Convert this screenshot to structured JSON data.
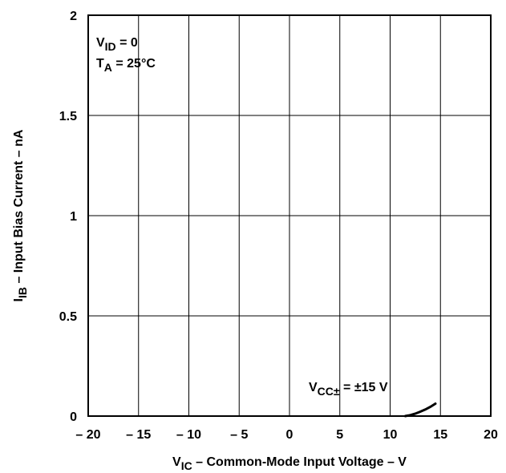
{
  "chart_data": {
    "type": "line",
    "title": "",
    "x_axis": {
      "label_main": "V",
      "label_sub": "IC",
      "label_rest": " – Common-Mode Input Voltage – V",
      "range": [
        -20,
        20
      ],
      "ticks": [
        -20,
        -15,
        -10,
        -5,
        0,
        5,
        10,
        15,
        20
      ],
      "tick_labels": [
        "– 20",
        "– 15",
        "– 10",
        "– 5",
        "0",
        "5",
        "10",
        "15",
        "20"
      ]
    },
    "y_axis": {
      "label_main": "I",
      "label_sub": "IB",
      "label_rest": " – Input Bias Current – nA",
      "range": [
        0,
        2
      ],
      "ticks": [
        0,
        0.5,
        1,
        1.5,
        2
      ],
      "tick_labels": [
        "0",
        "0.5",
        "1",
        "1.5",
        "2"
      ]
    },
    "grid": true,
    "conditions": [
      {
        "main": "V",
        "sub": "ID",
        "rest": " = 0"
      },
      {
        "main": "T",
        "sub": "A",
        "rest": " = 25°C"
      }
    ],
    "series": [
      {
        "label_main": "V",
        "label_sub": "CC±",
        "label_rest": " = ±15 V",
        "x": [
          11.5,
          12,
          12.5,
          13,
          13.5,
          14,
          14.5
        ],
        "y": [
          0.0,
          0.005,
          0.012,
          0.022,
          0.033,
          0.046,
          0.062
        ]
      }
    ]
  }
}
